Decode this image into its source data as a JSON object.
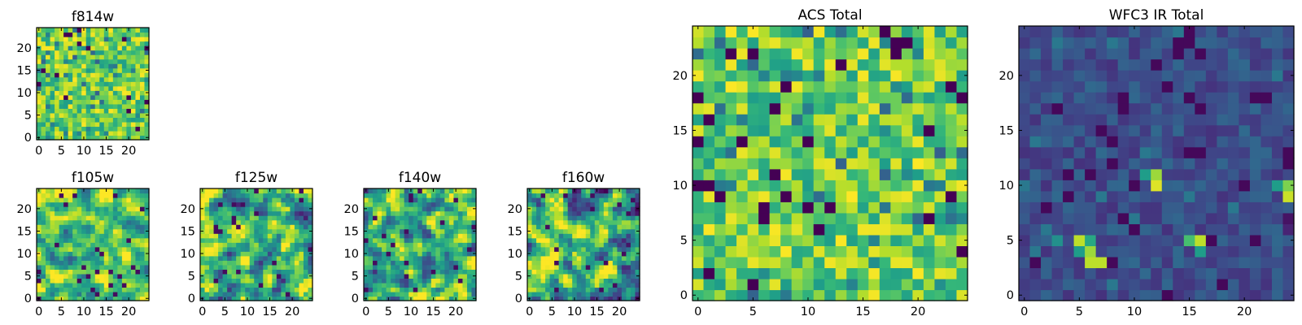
{
  "chart_data": [
    {
      "type": "heatmap",
      "title": "f814w",
      "xticks": [
        "0",
        "5",
        "10",
        "15",
        "20"
      ],
      "yticks": [
        "0",
        "5",
        "10",
        "15",
        "20"
      ],
      "grid": [
        25,
        25
      ],
      "xlim": [
        0,
        24
      ],
      "ylim": [
        0,
        24
      ],
      "colormap": "viridis",
      "pattern": "high-noise",
      "seed": 11
    },
    {
      "type": "heatmap",
      "title": "f105w",
      "xticks": [
        "0",
        "5",
        "10",
        "15",
        "20"
      ],
      "yticks": [
        "0",
        "5",
        "10",
        "15",
        "20"
      ],
      "grid": [
        25,
        25
      ],
      "xlim": [
        0,
        24
      ],
      "ylim": [
        0,
        24
      ],
      "colormap": "viridis",
      "pattern": "smooth-high",
      "seed": 23
    },
    {
      "type": "heatmap",
      "title": "f125w",
      "xticks": [
        "0",
        "5",
        "10",
        "15",
        "20"
      ],
      "yticks": [
        "0",
        "5",
        "10",
        "15",
        "20"
      ],
      "grid": [
        25,
        25
      ],
      "xlim": [
        0,
        24
      ],
      "ylim": [
        0,
        24
      ],
      "colormap": "viridis",
      "pattern": "smooth-mid",
      "seed": 37
    },
    {
      "type": "heatmap",
      "title": "f140w",
      "xticks": [
        "0",
        "5",
        "10",
        "15",
        "20"
      ],
      "yticks": [
        "0",
        "5",
        "10",
        "15",
        "20"
      ],
      "grid": [
        25,
        25
      ],
      "xlim": [
        0,
        24
      ],
      "ylim": [
        0,
        24
      ],
      "colormap": "viridis",
      "pattern": "smooth-mid",
      "seed": 41
    },
    {
      "type": "heatmap",
      "title": "f160w",
      "xticks": [
        "0",
        "5",
        "10",
        "15",
        "20"
      ],
      "yticks": [
        "0",
        "5",
        "10",
        "15",
        "20"
      ],
      "grid": [
        25,
        25
      ],
      "xlim": [
        0,
        24
      ],
      "ylim": [
        0,
        24
      ],
      "colormap": "viridis",
      "pattern": "smooth-mid",
      "seed": 53
    },
    {
      "type": "heatmap",
      "title": "ACS Total",
      "xticks": [
        "0",
        "5",
        "10",
        "15",
        "20"
      ],
      "yticks": [
        "0",
        "5",
        "10",
        "15",
        "20"
      ],
      "grid": [
        25,
        25
      ],
      "xlim": [
        0,
        24
      ],
      "ylim": [
        0,
        24
      ],
      "colormap": "viridis",
      "pattern": "high-noise",
      "seed": 67
    },
    {
      "type": "heatmap",
      "title": "WFC3 IR Total",
      "xticks": [
        "0",
        "5",
        "10",
        "15",
        "20"
      ],
      "yticks": [
        "0",
        "5",
        "10",
        "15",
        "20"
      ],
      "grid": [
        25,
        25
      ],
      "xlim": [
        0,
        24
      ],
      "ylim": [
        0,
        24
      ],
      "colormap": "viridis",
      "pattern": "low-sparse",
      "bright_pixels": [
        [
          12,
          10,
          0.95
        ],
        [
          12,
          11,
          0.85
        ],
        [
          11,
          11,
          0.55
        ],
        [
          24,
          9,
          0.92
        ],
        [
          24,
          10,
          0.8
        ],
        [
          23,
          10,
          0.55
        ],
        [
          5,
          5,
          0.9
        ],
        [
          6,
          4,
          0.85
        ],
        [
          6,
          3,
          0.9
        ],
        [
          7,
          3,
          0.9
        ],
        [
          6,
          5,
          0.6
        ],
        [
          5,
          4,
          0.55
        ],
        [
          16,
          5,
          0.9
        ],
        [
          15,
          5,
          0.7
        ],
        [
          16,
          4,
          0.55
        ],
        [
          3,
          5,
          0.5
        ],
        [
          24,
          7,
          0.05
        ],
        [
          24,
          6,
          0.1
        ]
      ],
      "seed": 79
    }
  ]
}
